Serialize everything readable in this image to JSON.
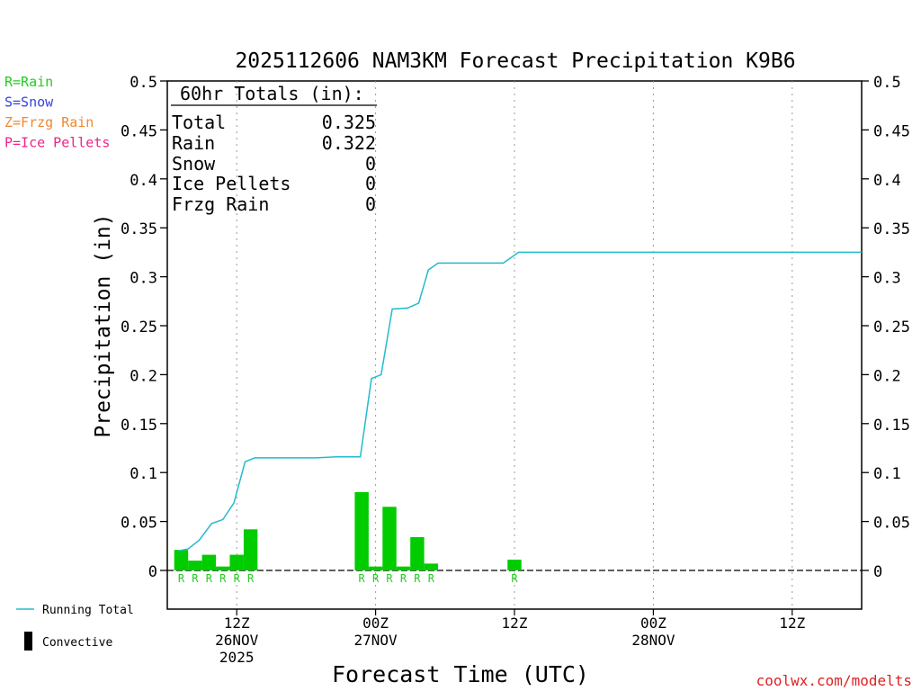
{
  "chart_data": {
    "type": "bar",
    "title": "2025112606 NAM3KM Forecast Precipitation K9B6",
    "ylabel": "Precipitation (in)",
    "xlabel": "Forecast Time (UTC)",
    "ylim": [
      -0.04,
      0.5
    ],
    "yticks": [
      0,
      0.05,
      0.1,
      0.15,
      0.2,
      0.25,
      0.3,
      0.35,
      0.4,
      0.45,
      0.5
    ],
    "ytick_labels": [
      "0",
      "0.05",
      "0.1",
      "0.15",
      "0.2",
      "0.25",
      "0.3",
      "0.35",
      "0.4",
      "0.45",
      "0.5"
    ],
    "xlim": [
      7,
      57
    ],
    "x_ticks": [
      {
        "hour": 12,
        "lines": [
          "12Z",
          "26NOV",
          "2025"
        ]
      },
      {
        "hour": 22,
        "lines": [
          "00Z",
          "27NOV"
        ]
      },
      {
        "hour": 32,
        "lines": [
          "12Z"
        ]
      },
      {
        "hour": 42,
        "lines": [
          "00Z",
          "28NOV"
        ]
      },
      {
        "hour": 52,
        "lines": [
          "12Z"
        ]
      }
    ],
    "grid": "vertical dotted at 00Z/12Z",
    "legend_left": [
      {
        "label": "R=Rain",
        "color": "#22cc22"
      },
      {
        "label": "S=Snow",
        "color": "#3344dd"
      },
      {
        "label": "Z=Frzg Rain",
        "color": "#ee8833"
      },
      {
        "label": "P=Ice Pellets",
        "color": "#ee2288"
      }
    ],
    "legend_bottom": [
      {
        "label": "Running Total",
        "color": "#22bbcc",
        "kind": "line"
      },
      {
        "label": "Convective",
        "color": "#000000",
        "kind": "bar"
      }
    ],
    "totals_box": {
      "header": "60hr Totals (in):",
      "rows": [
        {
          "label": "Total",
          "value": "0.325"
        },
        {
          "label": "Rain",
          "value": "0.322"
        },
        {
          "label": "Snow",
          "value": "0"
        },
        {
          "label": "Ice Pellets",
          "value": "0"
        },
        {
          "label": "Frzg Rain",
          "value": "0"
        }
      ]
    },
    "bars": {
      "color": "#00cc00",
      "type_label_color": "#22cc22",
      "hours": [
        8,
        9,
        10,
        11,
        12,
        13,
        21,
        22,
        23,
        24,
        25,
        26,
        32
      ],
      "values": [
        0.021,
        0.01,
        0.016,
        0.004,
        0.016,
        0.042,
        0.08,
        0.004,
        0.065,
        0.004,
        0.034,
        0.007,
        0.011
      ],
      "types": [
        "R",
        "R",
        "R",
        "R",
        "R",
        "R",
        "R",
        "R",
        "R",
        "R",
        "R",
        "R",
        "R"
      ]
    },
    "series": [
      {
        "name": "Running Total",
        "color": "#22bbcc",
        "x": [
          7.8,
          8.5,
          9.3,
          10.2,
          11,
          11.8,
          12.6,
          13.3,
          15.1,
          17.7,
          19.2,
          20.3,
          20.9,
          21.7,
          22.4,
          23.2,
          24.3,
          25.1,
          25.8,
          26.5,
          31.2,
          32.3,
          34.1,
          57
        ],
        "y": [
          0.02,
          0.022,
          0.031,
          0.048,
          0.052,
          0.069,
          0.111,
          0.115,
          0.115,
          0.115,
          0.116,
          0.116,
          0.116,
          0.196,
          0.2,
          0.267,
          0.268,
          0.273,
          0.307,
          0.314,
          0.314,
          0.325,
          0.325,
          0.325
        ]
      }
    ]
  },
  "credit": "coolwx.com/modelts"
}
